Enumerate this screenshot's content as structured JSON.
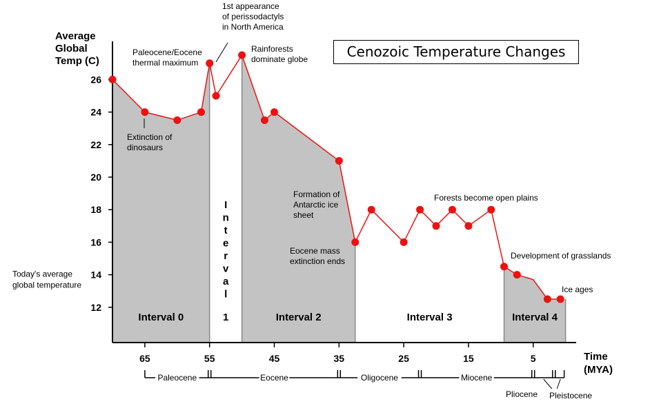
{
  "chart_data": {
    "type": "line",
    "title": "Cenozoic Temperature Changes",
    "ylabel": "Average Global Temp (C)",
    "ylabel_lines": [
      "Average",
      "Global",
      "Temp (C)"
    ],
    "xlabel": "Time (MYA)",
    "xlabel_lines": [
      "Time",
      "(MYA)"
    ],
    "x_reversed": true,
    "xlim": [
      70,
      0
    ],
    "ylim": [
      10,
      28
    ],
    "x_ticks": [
      65,
      55,
      45,
      35,
      25,
      15,
      5
    ],
    "y_ticks": [
      26,
      24,
      22,
      20,
      18,
      16,
      14,
      12
    ],
    "series": [
      {
        "color": "#ee1111",
        "points": [
          {
            "x": 70,
            "y": 26.0
          },
          {
            "x": 65,
            "y": 24.0
          },
          {
            "x": 60,
            "y": 23.5
          },
          {
            "x": 56.3,
            "y": 24.0
          },
          {
            "x": 55,
            "y": 27.0
          },
          {
            "x": 54,
            "y": 25.0
          },
          {
            "x": 50,
            "y": 27.5
          },
          {
            "x": 46.5,
            "y": 23.5
          },
          {
            "x": 45,
            "y": 24.0
          },
          {
            "x": 35,
            "y": 21.0
          },
          {
            "x": 32.5,
            "y": 16.0
          },
          {
            "x": 30,
            "y": 18.0
          },
          {
            "x": 25,
            "y": 16.0
          },
          {
            "x": 22.5,
            "y": 18.0
          },
          {
            "x": 20,
            "y": 17.0
          },
          {
            "x": 17.5,
            "y": 18.0
          },
          {
            "x": 15,
            "y": 17.0
          },
          {
            "x": 11.5,
            "y": 18.0
          },
          {
            "x": 9.5,
            "y": 14.5
          },
          {
            "x": 7.5,
            "y": 14.0
          },
          {
            "x": 5,
            "y": 13.7
          },
          {
            "x": 2.8,
            "y": 12.5
          },
          {
            "x": 0.8,
            "y": 12.5
          }
        ],
        "no_marker_x": [
          5
        ]
      }
    ],
    "intervals": [
      {
        "label": "Interval 0",
        "start": 70,
        "end": 55,
        "shaded": true
      },
      {
        "label_letters": [
          "I",
          "n",
          "t",
          "e",
          "r",
          "v",
          "a",
          "l"
        ],
        "number": "1",
        "start": 55,
        "end": 50,
        "shaded": false
      },
      {
        "label": "Interval 2",
        "start": 50,
        "end": 32.5,
        "shaded": true
      },
      {
        "label": "Interval 3",
        "start": 32.5,
        "end": 9.5,
        "shaded": false
      },
      {
        "label": "Interval 4",
        "start": 9.5,
        "end": 0,
        "shaded": true
      }
    ],
    "annotations": [
      {
        "lines": [
          "1st appearance",
          "of perissodactyls",
          "in North America"
        ],
        "x": 55,
        "y": 27.0
      },
      {
        "lines": [
          "Paleocene/Eocene",
          "thermal maximum"
        ],
        "x": 55,
        "y": 27.0
      },
      {
        "lines": [
          "Rainforests",
          "dominate globe"
        ],
        "x": 50,
        "y": 27.5
      },
      {
        "lines": [
          "Extinction of",
          "dinosaurs"
        ],
        "x": 65,
        "y": 24.0
      },
      {
        "lines": [
          "Formation of",
          "Antarctic ice",
          "sheet"
        ],
        "x": 35,
        "y": 21.0
      },
      {
        "lines": [
          "Eocene mass",
          "extinction ends"
        ],
        "x": 32.5,
        "y": 16.0
      },
      {
        "lines": [
          "Forests become open plains"
        ],
        "x": 15,
        "y": 18.0
      },
      {
        "lines": [
          "Development of grasslands"
        ],
        "x": 9.5,
        "y": 14.5
      },
      {
        "lines": [
          "Ice ages"
        ],
        "x": 0.8,
        "y": 12.5
      }
    ],
    "side_note": {
      "lines": [
        "Today's average",
        "global temperature"
      ],
      "y": 14
    }
  },
  "epochs": [
    {
      "name": "Paleocene",
      "start": 65,
      "end": 55
    },
    {
      "name": "Eocene",
      "start": 55,
      "end": 35
    },
    {
      "name": "Oligocene",
      "start": 35,
      "end": 22.5
    },
    {
      "name": "Miocene",
      "start": 22.5,
      "end": 5
    },
    {
      "name": "Pliocene",
      "start": 5,
      "end": 1.8
    },
    {
      "name": "Pleistocene",
      "start": 1.8,
      "end": 0
    }
  ]
}
